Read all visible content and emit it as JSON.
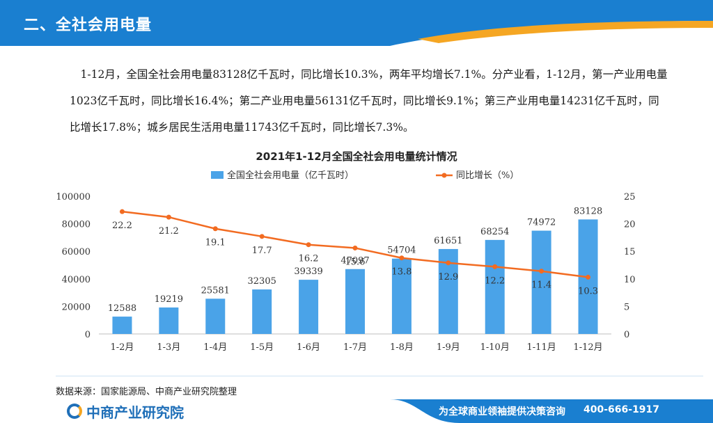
{
  "header": {
    "title": "二、全社会用电量"
  },
  "paragraph": {
    "text": "1-12月，全国全社会用电量83128亿千瓦时，同比增长10.3%，两年平均增长7.1%。分产业看，1-12月，第一产业用电量1023亿千瓦时，同比增长16.4%；第二产业用电量56131亿千瓦时，同比增长9.1%；第三产业用电量14231亿千瓦时，同比增长17.8%；城乡居民生活用电量11743亿千瓦时，同比增长7.3%。"
  },
  "chart_data": {
    "type": "bar+line",
    "title": "2021年1-12月全国全社会用电量统计情况",
    "categories": [
      "1-2月",
      "1-3月",
      "1-4月",
      "1-5月",
      "1-6月",
      "1-7月",
      "1-8月",
      "1-9月",
      "1-10月",
      "1-11月",
      "1-12月"
    ],
    "series": [
      {
        "name": "全国全社会用电量（亿千瓦时）",
        "type": "bar",
        "axis": "left",
        "color": "#4aa3e8",
        "values": [
          12588,
          19219,
          25581,
          32305,
          39339,
          47097,
          54704,
          61651,
          68254,
          74972,
          83128
        ]
      },
      {
        "name": "同比增长（%）",
        "type": "line",
        "axis": "right",
        "color": "#f26b21",
        "values": [
          22.2,
          21.2,
          19.1,
          17.7,
          16.2,
          15.6,
          13.8,
          12.9,
          12.2,
          11.4,
          10.3
        ]
      }
    ],
    "left_axis": {
      "min": 0,
      "max": 100000,
      "ticks": [
        0,
        20000,
        40000,
        60000,
        80000,
        100000
      ]
    },
    "right_axis": {
      "min": 0,
      "max": 25,
      "ticks": [
        0,
        5,
        10,
        15,
        20,
        25
      ]
    },
    "legend_position": "top-center",
    "grid": false
  },
  "source": {
    "text": "数据来源：国家能源局、中商产业研究院整理"
  },
  "footer": {
    "logo_text": "中商产业研究院",
    "slogan": "为全球商业领袖提供决策咨询",
    "phone": "400-666-1917"
  },
  "colors": {
    "header_blue": "#1a7fd0",
    "accent_orange": "#f5a623",
    "bar": "#4aa3e8",
    "line": "#f26b21"
  }
}
